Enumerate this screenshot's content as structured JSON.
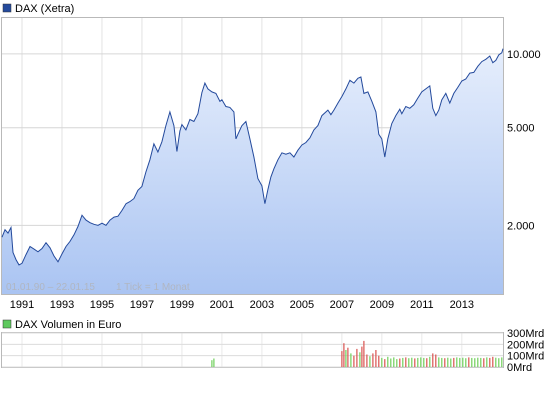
{
  "chart_data": [
    {
      "type": "area",
      "legend_label": "DAX (Xetra)",
      "legend_color": "#244a9c",
      "line_color": "#244a9c",
      "fill_top_color": "#e6eefc",
      "fill_bottom_color": "#aac4f2",
      "x_ticks": [
        "1991",
        "1993",
        "1995",
        "1997",
        "1999",
        "2001",
        "2003",
        "2005",
        "2007",
        "2009",
        "2011",
        "2013"
      ],
      "x_range": [
        1990.0,
        2015.06
      ],
      "y_scale": "log",
      "y_ticks": [
        "10.000",
        "5.000",
        "2.000"
      ],
      "y_tick_values": [
        10000,
        5000,
        2000
      ],
      "ylim": [
        1050,
        14000
      ],
      "range_label": "01.01.90 – 22.01.15",
      "interval_label": "1 Tick = 1 Monat",
      "grid": true,
      "series": [
        {
          "name": "DAX (Xetra)",
          "points": [
            [
              1990.0,
              1790
            ],
            [
              1990.15,
              1920
            ],
            [
              1990.3,
              1860
            ],
            [
              1990.45,
              1960
            ],
            [
              1990.55,
              1550
            ],
            [
              1990.7,
              1450
            ],
            [
              1990.85,
              1380
            ],
            [
              1991.0,
              1400
            ],
            [
              1991.2,
              1520
            ],
            [
              1991.4,
              1640
            ],
            [
              1991.6,
              1600
            ],
            [
              1991.8,
              1560
            ],
            [
              1992.0,
              1610
            ],
            [
              1992.2,
              1700
            ],
            [
              1992.4,
              1620
            ],
            [
              1992.6,
              1500
            ],
            [
              1992.8,
              1420
            ],
            [
              1993.0,
              1530
            ],
            [
              1993.2,
              1640
            ],
            [
              1993.4,
              1720
            ],
            [
              1993.6,
              1830
            ],
            [
              1993.8,
              1980
            ],
            [
              1994.0,
              2200
            ],
            [
              1994.2,
              2100
            ],
            [
              1994.4,
              2050
            ],
            [
              1994.6,
              2020
            ],
            [
              1994.8,
              2000
            ],
            [
              1995.0,
              2040
            ],
            [
              1995.2,
              2000
            ],
            [
              1995.4,
              2100
            ],
            [
              1995.6,
              2160
            ],
            [
              1995.8,
              2180
            ],
            [
              1996.0,
              2300
            ],
            [
              1996.2,
              2450
            ],
            [
              1996.4,
              2500
            ],
            [
              1996.6,
              2570
            ],
            [
              1996.8,
              2780
            ],
            [
              1997.0,
              2880
            ],
            [
              1997.2,
              3300
            ],
            [
              1997.4,
              3700
            ],
            [
              1997.6,
              4300
            ],
            [
              1997.8,
              3980
            ],
            [
              1998.0,
              4380
            ],
            [
              1998.2,
              5100
            ],
            [
              1998.4,
              5800
            ],
            [
              1998.6,
              5100
            ],
            [
              1998.75,
              4000
            ],
            [
              1998.9,
              4850
            ],
            [
              1999.0,
              5150
            ],
            [
              1999.2,
              4900
            ],
            [
              1999.4,
              5400
            ],
            [
              1999.6,
              5300
            ],
            [
              1999.8,
              5700
            ],
            [
              2000.0,
              6950
            ],
            [
              2000.15,
              7600
            ],
            [
              2000.3,
              7200
            ],
            [
              2000.5,
              7000
            ],
            [
              2000.7,
              6900
            ],
            [
              2000.9,
              6400
            ],
            [
              2001.0,
              6500
            ],
            [
              2001.2,
              6100
            ],
            [
              2001.4,
              6050
            ],
            [
              2001.6,
              5800
            ],
            [
              2001.7,
              4500
            ],
            [
              2001.8,
              4700
            ],
            [
              2002.0,
              5100
            ],
            [
              2002.2,
              5300
            ],
            [
              2002.4,
              4500
            ],
            [
              2002.6,
              3800
            ],
            [
              2002.8,
              3100
            ],
            [
              2003.0,
              2900
            ],
            [
              2003.15,
              2450
            ],
            [
              2003.3,
              2800
            ],
            [
              2003.45,
              3150
            ],
            [
              2003.6,
              3400
            ],
            [
              2003.8,
              3700
            ],
            [
              2004.0,
              3950
            ],
            [
              2004.2,
              3900
            ],
            [
              2004.4,
              3950
            ],
            [
              2004.6,
              3800
            ],
            [
              2004.8,
              4050
            ],
            [
              2005.0,
              4250
            ],
            [
              2005.2,
              4350
            ],
            [
              2005.4,
              4550
            ],
            [
              2005.6,
              4900
            ],
            [
              2005.8,
              5100
            ],
            [
              2006.0,
              5600
            ],
            [
              2006.3,
              5900
            ],
            [
              2006.45,
              5650
            ],
            [
              2006.6,
              5900
            ],
            [
              2006.8,
              6300
            ],
            [
              2007.0,
              6700
            ],
            [
              2007.2,
              7200
            ],
            [
              2007.4,
              7800
            ],
            [
              2007.6,
              7600
            ],
            [
              2007.8,
              7950
            ],
            [
              2007.95,
              8050
            ],
            [
              2008.1,
              6900
            ],
            [
              2008.3,
              7000
            ],
            [
              2008.5,
              6400
            ],
            [
              2008.7,
              5800
            ],
            [
              2008.85,
              4700
            ],
            [
              2009.0,
              4500
            ],
            [
              2009.15,
              3800
            ],
            [
              2009.3,
              4500
            ],
            [
              2009.5,
              5200
            ],
            [
              2009.7,
              5600
            ],
            [
              2009.9,
              5950
            ],
            [
              2010.0,
              5700
            ],
            [
              2010.2,
              6100
            ],
            [
              2010.4,
              6000
            ],
            [
              2010.6,
              6200
            ],
            [
              2010.8,
              6600
            ],
            [
              2011.0,
              7000
            ],
            [
              2011.2,
              7200
            ],
            [
              2011.4,
              7400
            ],
            [
              2011.55,
              6000
            ],
            [
              2011.7,
              5600
            ],
            [
              2011.85,
              5900
            ],
            [
              2012.0,
              6500
            ],
            [
              2012.2,
              6900
            ],
            [
              2012.4,
              6300
            ],
            [
              2012.6,
              6900
            ],
            [
              2012.8,
              7300
            ],
            [
              2013.0,
              7750
            ],
            [
              2013.2,
              7900
            ],
            [
              2013.4,
              8350
            ],
            [
              2013.6,
              8400
            ],
            [
              2013.8,
              8900
            ],
            [
              2014.0,
              9300
            ],
            [
              2014.2,
              9500
            ],
            [
              2014.4,
              9800
            ],
            [
              2014.55,
              9200
            ],
            [
              2014.7,
              9400
            ],
            [
              2014.85,
              9900
            ],
            [
              2015.0,
              10100
            ],
            [
              2015.06,
              10500
            ]
          ]
        }
      ]
    },
    {
      "type": "bar",
      "legend_label": "DAX Volumen in Euro",
      "legend_color": "#5ec95e",
      "up_color": "#6fcf5a",
      "down_color": "#d9534f",
      "y_ticks": [
        "300Mrd",
        "200Mrd",
        "100Mrd",
        "0Mrd"
      ],
      "y_tick_values": [
        300,
        200,
        100,
        0
      ],
      "ylim": [
        0,
        300
      ],
      "x_range": [
        1990.0,
        2015.06
      ],
      "grid": true,
      "series": [
        {
          "name": "DAX Volumen in Euro",
          "unit": "Mrd",
          "bars": [
            [
              2000.5,
              60,
              "up"
            ],
            [
              2000.6,
              75,
              "up"
            ],
            [
              2007.0,
              140,
              "down"
            ],
            [
              2007.1,
              210,
              "down"
            ],
            [
              2007.2,
              150,
              "up"
            ],
            [
              2007.3,
              170,
              "down"
            ],
            [
              2007.45,
              120,
              "up"
            ],
            [
              2007.6,
              100,
              "down"
            ],
            [
              2007.75,
              160,
              "down"
            ],
            [
              2007.9,
              130,
              "up"
            ],
            [
              2008.0,
              180,
              "down"
            ],
            [
              2008.1,
              230,
              "down"
            ],
            [
              2008.25,
              110,
              "down"
            ],
            [
              2008.4,
              95,
              "up"
            ],
            [
              2008.55,
              120,
              "down"
            ],
            [
              2008.7,
              150,
              "down"
            ],
            [
              2008.85,
              100,
              "down"
            ],
            [
              2009.0,
              80,
              "up"
            ],
            [
              2009.15,
              70,
              "down"
            ],
            [
              2009.3,
              90,
              "up"
            ],
            [
              2009.45,
              75,
              "up"
            ],
            [
              2009.6,
              85,
              "up"
            ],
            [
              2009.75,
              70,
              "up"
            ],
            [
              2009.9,
              75,
              "down"
            ],
            [
              2010.05,
              80,
              "up"
            ],
            [
              2010.2,
              85,
              "down"
            ],
            [
              2010.35,
              78,
              "up"
            ],
            [
              2010.5,
              82,
              "up"
            ],
            [
              2010.65,
              76,
              "down"
            ],
            [
              2010.8,
              80,
              "up"
            ],
            [
              2010.95,
              85,
              "up"
            ],
            [
              2011.1,
              80,
              "up"
            ],
            [
              2011.25,
              78,
              "down"
            ],
            [
              2011.4,
              90,
              "up"
            ],
            [
              2011.55,
              120,
              "down"
            ],
            [
              2011.7,
              110,
              "down"
            ],
            [
              2011.85,
              85,
              "up"
            ],
            [
              2012.0,
              80,
              "up"
            ],
            [
              2012.15,
              78,
              "down"
            ],
            [
              2012.3,
              82,
              "up"
            ],
            [
              2012.45,
              75,
              "up"
            ],
            [
              2012.6,
              80,
              "down"
            ],
            [
              2012.75,
              85,
              "up"
            ],
            [
              2012.9,
              80,
              "up"
            ],
            [
              2013.05,
              82,
              "up"
            ],
            [
              2013.2,
              78,
              "up"
            ],
            [
              2013.35,
              85,
              "down"
            ],
            [
              2013.5,
              80,
              "up"
            ],
            [
              2013.65,
              78,
              "up"
            ],
            [
              2013.8,
              82,
              "up"
            ],
            [
              2013.95,
              80,
              "up"
            ],
            [
              2014.1,
              78,
              "down"
            ],
            [
              2014.25,
              85,
              "up"
            ],
            [
              2014.4,
              80,
              "down"
            ],
            [
              2014.55,
              90,
              "down"
            ],
            [
              2014.7,
              82,
              "up"
            ],
            [
              2014.85,
              78,
              "up"
            ],
            [
              2015.0,
              85,
              "up"
            ]
          ]
        }
      ]
    }
  ]
}
